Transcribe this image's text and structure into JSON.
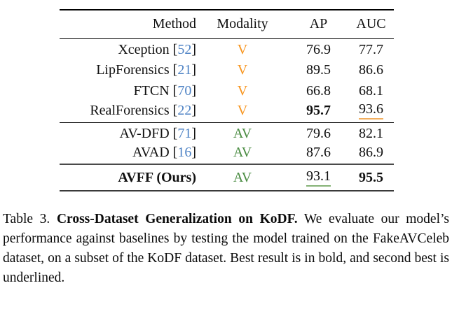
{
  "table": {
    "headers": {
      "method": "Method",
      "modality": "Modality",
      "ap": "AP",
      "auc": "AUC"
    },
    "cite_open": "[",
    "cite_close": "]",
    "rows": [
      {
        "name": "Xception",
        "cite": "52",
        "modality": "V",
        "ap": "76.9",
        "auc": "77.7",
        "name_style": "normal",
        "ap_style": "normal",
        "auc_style": "normal"
      },
      {
        "name": "LipForensics",
        "cite": "21",
        "modality": "V",
        "ap": "89.5",
        "auc": "86.6",
        "name_style": "normal",
        "ap_style": "normal",
        "auc_style": "normal"
      },
      {
        "name": "FTCN",
        "cite": "70",
        "modality": "V",
        "ap": "66.8",
        "auc": "68.1",
        "name_style": "normal",
        "ap_style": "normal",
        "auc_style": "normal"
      },
      {
        "name": "RealForensics",
        "cite": "22",
        "modality": "V",
        "ap": "95.7",
        "auc": "93.6",
        "name_style": "normal",
        "ap_style": "bold",
        "auc_style": "underline-v"
      },
      {
        "name": "AV-DFD",
        "cite": "71",
        "modality": "AV",
        "ap": "79.6",
        "auc": "82.1",
        "name_style": "normal",
        "ap_style": "normal",
        "auc_style": "normal"
      },
      {
        "name": "AVAD",
        "cite": "16",
        "modality": "AV",
        "ap": "87.6",
        "auc": "86.9",
        "name_style": "normal",
        "ap_style": "normal",
        "auc_style": "normal"
      },
      {
        "name": "AVFF (Ours)",
        "cite": "",
        "modality": "AV",
        "ap": "93.1",
        "auc": "95.5",
        "name_style": "bold",
        "ap_style": "underline-av",
        "auc_style": "bold"
      }
    ]
  },
  "caption": {
    "label": "Table 3.",
    "title": "Cross-Dataset Generalization on KoDF.",
    "body": "We evaluate our model’s performance against baselines by testing the model trained on the FakeAVCeleb dataset, on a subset of the KoDF dataset. Best result is in bold, and second best is underlined."
  },
  "colors": {
    "modality_v": "#F7941D",
    "modality_av": "#4A8C42",
    "citation": "#4D82C4",
    "underline_v": "#F2AE5E",
    "underline_av": "#85B276"
  }
}
